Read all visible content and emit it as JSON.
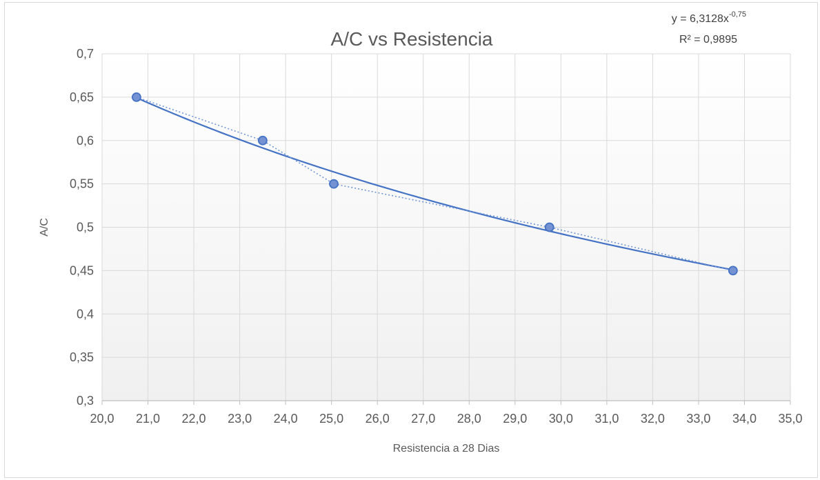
{
  "chart_data": {
    "type": "scatter",
    "title": "A/C vs Resistencia",
    "xlabel": "Resistencia a 28 Dias",
    "ylabel": "A/C",
    "xlim": [
      20,
      35
    ],
    "ylim": [
      0.3,
      0.7
    ],
    "x_ticks": [
      "20,0",
      "21,0",
      "22,0",
      "23,0",
      "24,0",
      "25,0",
      "26,0",
      "27,0",
      "28,0",
      "29,0",
      "30,0",
      "31,0",
      "32,0",
      "33,0",
      "34,0",
      "35,0"
    ],
    "y_ticks": [
      "0,3",
      "0,35",
      "0,4",
      "0,45",
      "0,5",
      "0,55",
      "0,6",
      "0,65",
      "0,7"
    ],
    "grid": true,
    "series": [
      {
        "points": [
          {
            "x": 20.75,
            "y": 0.65
          },
          {
            "x": 23.5,
            "y": 0.6
          },
          {
            "x": 25.05,
            "y": 0.55
          },
          {
            "x": 29.75,
            "y": 0.5
          },
          {
            "x": 33.75,
            "y": 0.45
          }
        ],
        "marker_color": "#7592d3",
        "marker_edge": "#4472c4",
        "connector": "dotted"
      }
    ],
    "trendline": {
      "type": "power",
      "a": 6.3128,
      "b": -0.75,
      "color": "#4472c4",
      "equation_prefix": "y = 6,3128x",
      "equation_exponent": "-0,75",
      "r2_label": "R² = 0,9895",
      "position": "top-right"
    }
  }
}
